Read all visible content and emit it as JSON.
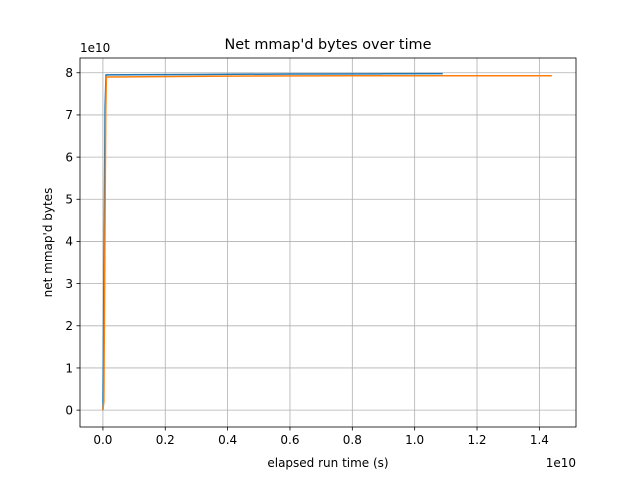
{
  "chart_data": {
    "type": "line",
    "title": "Net mmap'd bytes over time",
    "xlabel": "elapsed run time (s)",
    "ylabel": "net mmap'd bytes",
    "x_offset_label": "1e10",
    "y_offset_label": "1e10",
    "x_scale": 10000000000.0,
    "y_scale": 10000000000.0,
    "xlim": [
      -0.0735,
      1.5175
    ],
    "ylim": [
      -0.4,
      8.35
    ],
    "x_ticks": [
      0.0,
      0.2,
      0.4,
      0.6,
      0.8,
      1.0,
      1.2,
      1.4
    ],
    "x_tick_labels": [
      "0.0",
      "0.2",
      "0.4",
      "0.6",
      "0.8",
      "1.0",
      "1.2",
      "1.4"
    ],
    "y_ticks": [
      0,
      1,
      2,
      3,
      4,
      5,
      6,
      7,
      8
    ],
    "y_tick_labels": [
      "0",
      "1",
      "2",
      "3",
      "4",
      "5",
      "6",
      "7",
      "8"
    ],
    "grid": true,
    "series": [
      {
        "color": "#1f77b4",
        "x": [
          0.0,
          0.004,
          0.007,
          0.01,
          0.3,
          0.6,
          0.9,
          1.09
        ],
        "y": [
          0.0,
          4.0,
          7.2,
          7.95,
          7.96,
          7.97,
          7.975,
          7.98
        ]
      },
      {
        "color": "#ff7f0e",
        "x": [
          0.0,
          0.003,
          0.006,
          0.009,
          0.011,
          0.4,
          0.8,
          1.2,
          1.44
        ],
        "y": [
          0.0,
          0.2,
          3.5,
          7.0,
          7.9,
          7.92,
          7.93,
          7.93,
          7.93
        ]
      }
    ]
  }
}
